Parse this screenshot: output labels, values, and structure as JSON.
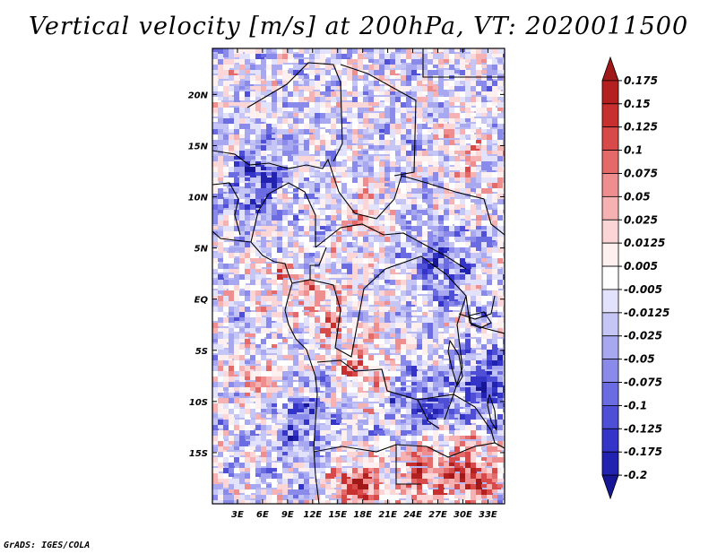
{
  "chart_data": {
    "type": "heatmap",
    "title": "Vertical velocity [m/s] at 200hPa, VT: 2020011500",
    "field": "vertical velocity",
    "units": "m/s",
    "level": "200hPa",
    "valid_time": "2020011500",
    "lon_range": [
      0,
      35
    ],
    "lat_range": [
      -20,
      24.5
    ],
    "x_ticks": [
      {
        "value": 3,
        "label": "3E"
      },
      {
        "value": 6,
        "label": "6E"
      },
      {
        "value": 9,
        "label": "9E"
      },
      {
        "value": 12,
        "label": "12E"
      },
      {
        "value": 15,
        "label": "15E"
      },
      {
        "value": 18,
        "label": "18E"
      },
      {
        "value": 21,
        "label": "21E"
      },
      {
        "value": 24,
        "label": "24E"
      },
      {
        "value": 27,
        "label": "27E"
      },
      {
        "value": 30,
        "label": "30E"
      },
      {
        "value": 33,
        "label": "33E"
      }
    ],
    "y_ticks": [
      {
        "value": 20,
        "label": "20N"
      },
      {
        "value": 15,
        "label": "15N"
      },
      {
        "value": 10,
        "label": "10N"
      },
      {
        "value": 5,
        "label": "5N"
      },
      {
        "value": 0,
        "label": "EQ"
      },
      {
        "value": -5,
        "label": "5S"
      },
      {
        "value": -10,
        "label": "10S"
      },
      {
        "value": -15,
        "label": "15S"
      }
    ],
    "colorbar": {
      "levels": [
        "0.175",
        "0.15",
        "0.125",
        "0.1",
        "0.075",
        "0.05",
        "0.025",
        "0.0125",
        "0.005",
        "-0.005",
        "-0.0125",
        "-0.025",
        "-0.05",
        "-0.075",
        "-0.1",
        "-0.125",
        "-0.175",
        "-0.2"
      ],
      "colors": [
        "#a01818",
        "#b42020",
        "#c83030",
        "#d84a4a",
        "#e46a6a",
        "#ee8e8e",
        "#f6b2b2",
        "#fcd6d6",
        "#fff0f0",
        "#ffffff",
        "#e2e2fc",
        "#c6c6f6",
        "#a8a8f0",
        "#8a8aea",
        "#6c6ce2",
        "#4e4ed6",
        "#3434c8",
        "#2222b0",
        "#161696"
      ]
    },
    "features": {
      "positive_regions": [
        {
          "lon": 13.5,
          "lat": -1,
          "strength": 0.5
        },
        {
          "lon": 17.5,
          "lat": -6,
          "strength": 0.55
        },
        {
          "lon": 18,
          "lat": 8,
          "strength": 0.4
        },
        {
          "lon": 25,
          "lat": -16.5,
          "strength": 0.85
        },
        {
          "lon": 31,
          "lat": -17,
          "strength": 0.9
        },
        {
          "lon": 17,
          "lat": -18.5,
          "strength": 0.85
        },
        {
          "lon": 30,
          "lat": 14,
          "strength": 0.35
        },
        {
          "lon": 8,
          "lat": 2,
          "strength": 0.35
        },
        {
          "lon": 5,
          "lat": -8,
          "strength": 0.4
        }
      ],
      "negative_regions": [
        {
          "lon": 5,
          "lat": 12,
          "strength": 0.55
        },
        {
          "lon": 27,
          "lat": 4,
          "strength": 0.5
        },
        {
          "lon": 25,
          "lat": -10,
          "strength": 0.55
        },
        {
          "lon": 10,
          "lat": -12,
          "strength": 0.5
        },
        {
          "lon": 33,
          "lat": -8,
          "strength": 0.6
        }
      ]
    }
  },
  "footer": "GrADS: IGES/COLA"
}
